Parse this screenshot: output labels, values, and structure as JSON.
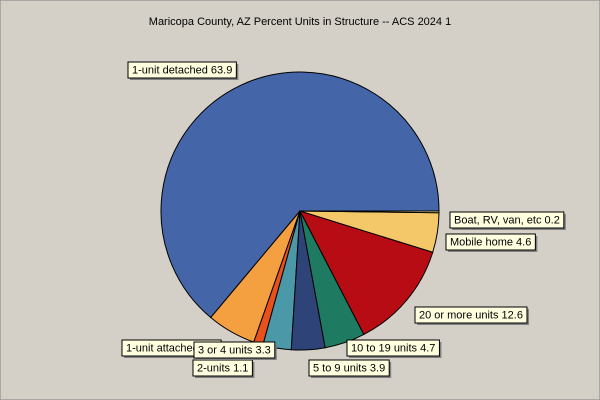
{
  "chart_data": {
    "type": "pie",
    "title": "Maricopa County, AZ Percent Units in Structure -- ACS 2024 1",
    "categories": [
      "1-unit detached",
      "1-unit attached",
      "2-units",
      "3 or 4 units",
      "5 to 9 units",
      "10 to 19 units",
      "20 or more units",
      "Mobile home",
      "Boat, RV, van, etc"
    ],
    "values": [
      63.9,
      5.7,
      1.1,
      3.3,
      3.9,
      4.7,
      12.6,
      4.6,
      0.2
    ],
    "colors": [
      "#4466a8",
      "#f4a040",
      "#e8501c",
      "#4a98a8",
      "#2e4478",
      "#1e7a60",
      "#b80c14",
      "#f4c868",
      "#f0e090"
    ]
  }
}
